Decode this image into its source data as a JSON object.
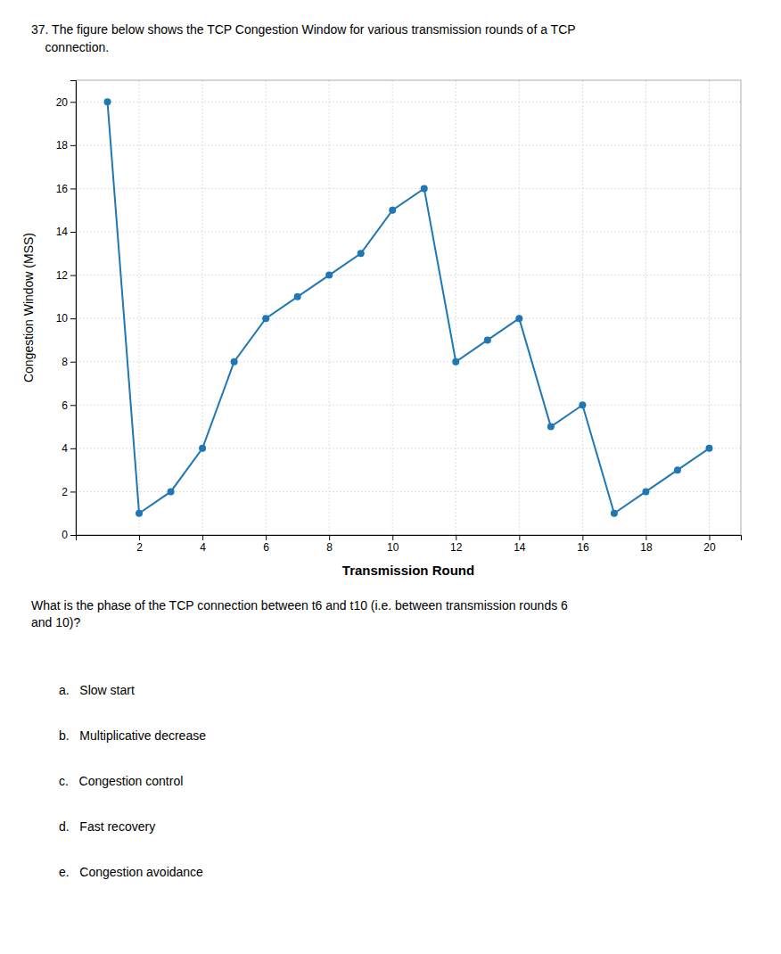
{
  "chart_data": {
    "type": "line",
    "title": "37. The figure below shows the TCP Congestion Window for various transmission rounds of a TCP",
    "subtitle": "    connection.",
    "x": [
      1,
      2,
      3,
      4,
      5,
      6,
      7,
      8,
      9,
      10,
      11,
      12,
      13,
      14,
      15,
      16,
      17,
      18,
      19,
      20
    ],
    "values": [
      20,
      1,
      2,
      4,
      8,
      10,
      11,
      12,
      13,
      15,
      16,
      8,
      9,
      10,
      5,
      6,
      1,
      2,
      3,
      4
    ],
    "xlabel": "Transmission Round",
    "ylabel": "Congestion Window (MSS)",
    "xlim": [
      0,
      21
    ],
    "ylim": [
      0,
      21
    ],
    "xticks": [
      2,
      4,
      6,
      8,
      10,
      12,
      14,
      16,
      18,
      20
    ],
    "yticks": [
      0,
      2,
      4,
      6,
      8,
      10,
      12,
      14,
      16,
      18,
      20
    ],
    "grid": true,
    "marker": "circle",
    "annotations": [
      "What is the phase of the TCP connection between t6 and t10 (i.e. between transmission rounds 6\nand 10)?",
      "a.   Slow start",
      "b.   Multiplicative decrease",
      "c.   Congestion control",
      "d.   Fast recovery",
      "e.   Congestion avoidance"
    ]
  }
}
